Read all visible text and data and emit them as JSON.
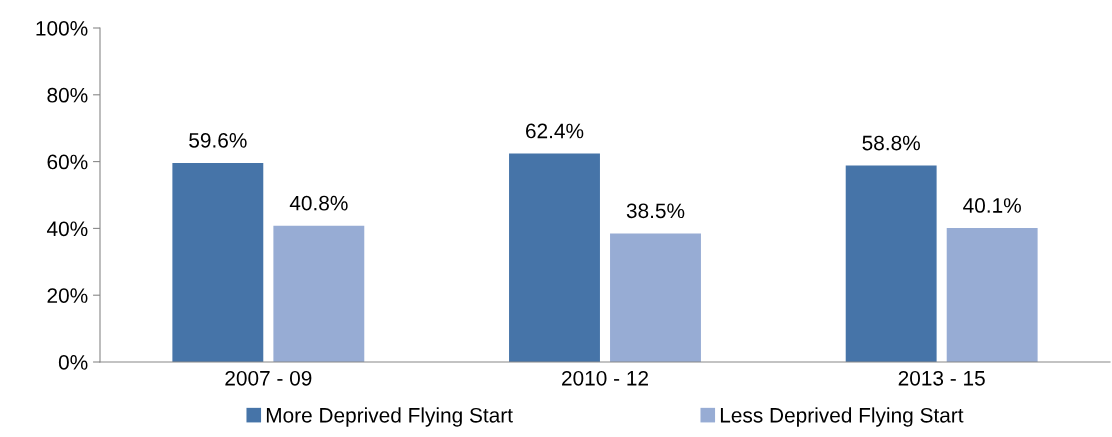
{
  "chart_data": {
    "type": "bar",
    "categories": [
      "2007 - 09",
      "2010 - 12",
      "2013 - 15"
    ],
    "series": [
      {
        "name": "More Deprived Flying Start",
        "color": "#4674a8",
        "values": [
          59.6,
          62.4,
          58.8
        ],
        "value_labels": [
          "59.6%",
          "62.4%",
          "58.8%"
        ]
      },
      {
        "name": "Less Deprived Flying Start",
        "color": "#97acd4",
        "values": [
          40.8,
          38.5,
          40.1
        ],
        "value_labels": [
          "40.8%",
          "38.5%",
          "40.1%"
        ]
      }
    ],
    "ylim": [
      0,
      100
    ],
    "yticks": [
      {
        "value": 0,
        "label": "0%"
      },
      {
        "value": 20,
        "label": "20%"
      },
      {
        "value": 40,
        "label": "40%"
      },
      {
        "value": 60,
        "label": "60%"
      },
      {
        "value": 80,
        "label": "80%"
      },
      {
        "value": 100,
        "label": "100%"
      }
    ],
    "grid": false,
    "legend": "bottom"
  }
}
